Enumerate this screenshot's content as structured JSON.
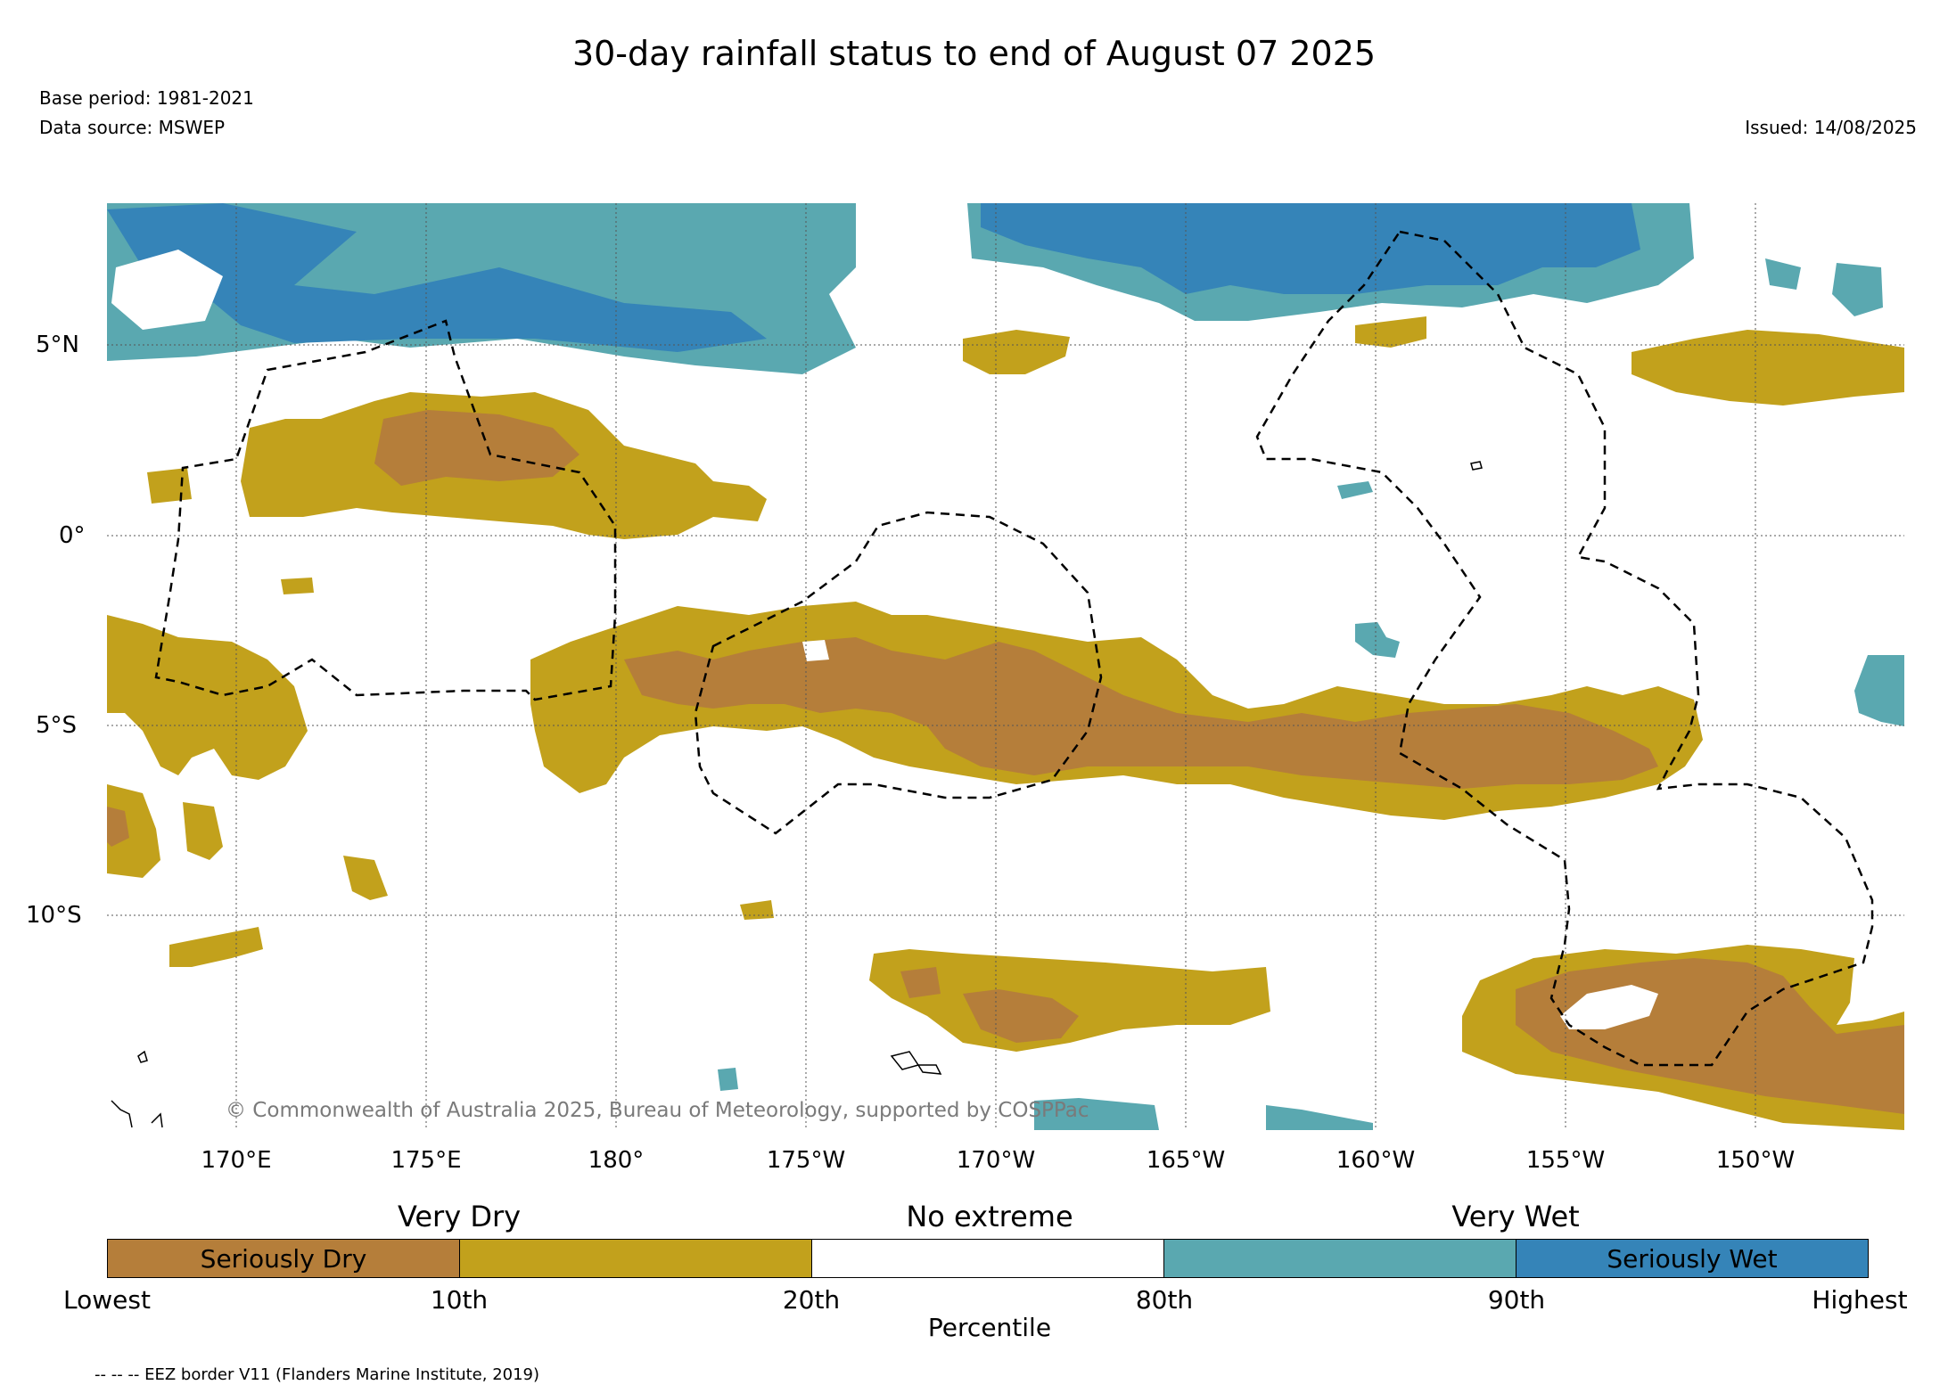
{
  "header": {
    "title": "30-day rainfall status to end of August 07 2025",
    "base_period": "Base period: 1981-2021",
    "data_source": "Data source: MSWEP",
    "issued": "Issued: 14/08/2025"
  },
  "map": {
    "lat_labels": [
      "5°N",
      "0°",
      "5°S",
      "10°S"
    ],
    "lon_labels": [
      "170°E",
      "175°E",
      "180°",
      "175°W",
      "170°W",
      "165°W",
      "160°W",
      "155°W",
      "150°W"
    ],
    "copyright": "© Commonwealth of Australia 2025, Bureau of Meteorology, supported by COSPPac",
    "colors": {
      "seriously_dry": "#b57e3a",
      "dry": "#c2a11c",
      "no_extreme": "#ffffff",
      "wet": "#5aa8b0",
      "seriously_wet": "#3584b8"
    }
  },
  "legend": {
    "group_labels": [
      "Very Dry",
      "No extreme",
      "Very Wet"
    ],
    "box_labels": [
      "Seriously Dry",
      "",
      "",
      "",
      "Seriously Wet"
    ],
    "tick_labels": [
      "Lowest",
      "10th",
      "20th",
      "80th",
      "90th",
      "Highest"
    ],
    "axis_label": "Percentile"
  },
  "footer": {
    "eez_note": "-- -- -- EEZ border V11 (Flanders Marine Institute, 2019)"
  }
}
